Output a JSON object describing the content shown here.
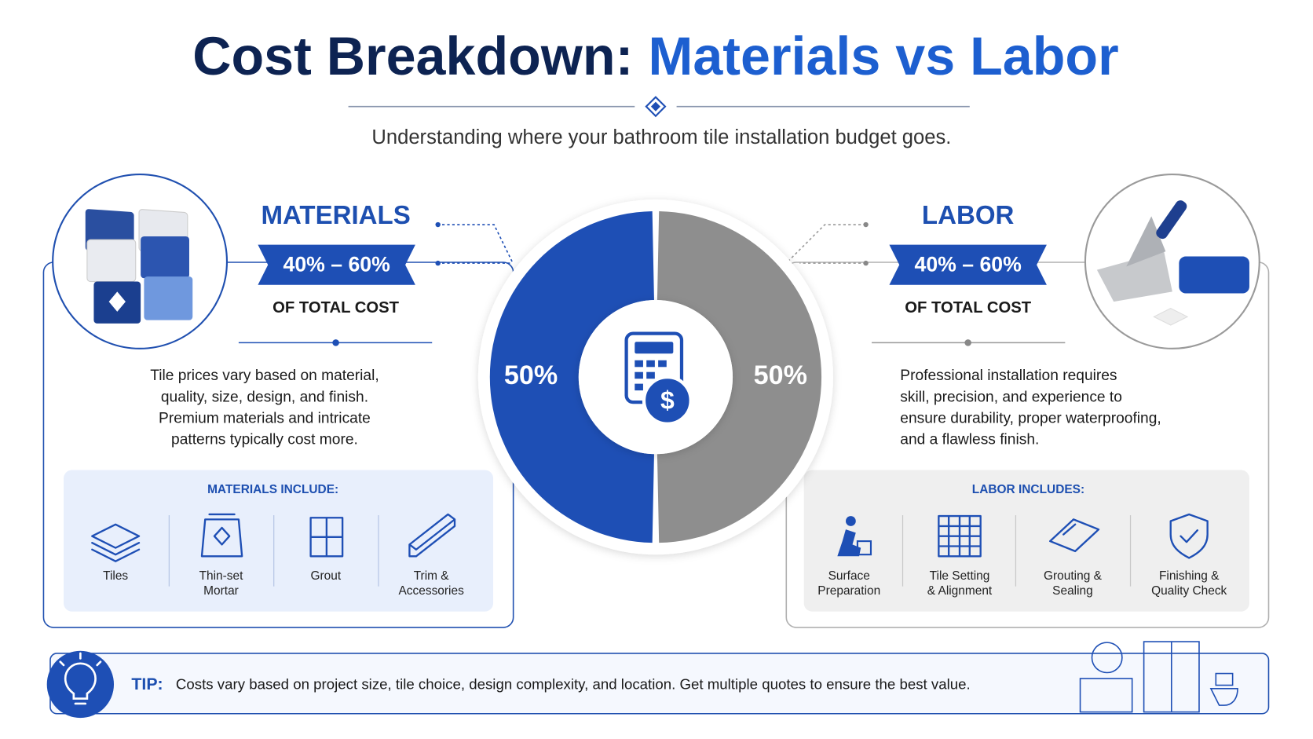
{
  "header": {
    "title_part1": "Cost Breakdown:",
    "title_part2": "Materials vs Labor",
    "subtitle": "Understanding where your bathroom tile installation budget goes."
  },
  "chart_data": {
    "type": "pie",
    "categories": [
      "MATERIALS",
      "LABOR"
    ],
    "values": [
      50,
      50
    ],
    "value_labels": [
      "50%",
      "50%"
    ],
    "colors": [
      "#1e4fb5",
      "#8e8e8e"
    ]
  },
  "materials": {
    "range": "40% – 60%",
    "caption": "OF TOTAL COST",
    "description": [
      "Tile prices vary based on material,",
      "quality, size, design, and finish.",
      "Premium materials and intricate",
      "patterns typically cost more."
    ],
    "includes_title": "MATERIALS INCLUDE:",
    "items": [
      [
        "Tiles"
      ],
      [
        "Thin-set",
        "Mortar"
      ],
      [
        "Grout"
      ],
      [
        "Trim &",
        "Accessories"
      ]
    ]
  },
  "labor": {
    "range": "40% – 60%",
    "caption": "OF TOTAL COST",
    "description": [
      "Professional installation requires",
      "skill, precision, and experience to",
      "ensure durability, proper waterproofing,",
      "and a flawless finish."
    ],
    "includes_title": "LABOR INCLUDES:",
    "items": [
      [
        "Surface",
        "Preparation"
      ],
      [
        "Tile Setting",
        "& Alignment"
      ],
      [
        "Grouting &",
        "Sealing"
      ],
      [
        "Finishing &",
        "Quality Check"
      ]
    ]
  },
  "tip": {
    "label": "TIP:",
    "text": "Costs vary based on project size, tile choice, design complexity, and location. Get multiple quotes to ensure the best value."
  }
}
